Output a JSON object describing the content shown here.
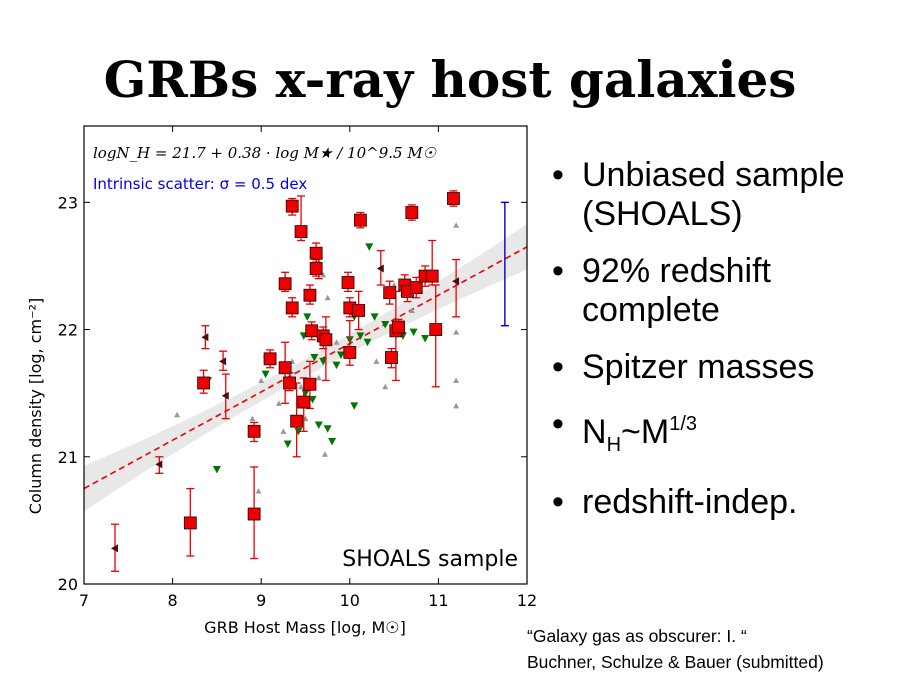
{
  "slide": {
    "title": "GRBs x-ray host galaxies",
    "bullets": [
      {
        "text": "Unbiased sample (SHOALS)"
      },
      {
        "text": "92% redshift complete"
      },
      {
        "text": "Spitzer masses"
      },
      {
        "main": "N",
        "sub": "H",
        "mid": "~M",
        "sup": "1/3"
      },
      {
        "text": "redshift-indep."
      }
    ],
    "citation": [
      "“Galaxy gas as obscurer: I. “",
      "Buchner, Schulze & Bauer (submitted)"
    ]
  },
  "chart_data": {
    "type": "scatter",
    "title": "",
    "xlabel": "GRB Host Mass [log, M☉]",
    "ylabel": "Column density [log, cm⁻²]",
    "xlim": [
      7,
      12
    ],
    "ylim": [
      20,
      23.6
    ],
    "xticks": [
      "7",
      "8",
      "9",
      "10",
      "11",
      "12"
    ],
    "yticks": [
      "20",
      "21",
      "22",
      "23"
    ],
    "grid": false,
    "annotations": {
      "equation": "logN_H = 21.7 + 0.38 · log M★ / 10^9.5 M☉",
      "scatter_label": "Intrinsic scatter: σ = 0.5 dex",
      "sample_label": "SHOALS sample"
    },
    "fit": {
      "intercept": 21.7,
      "slope": 0.38,
      "pivot": 9.5,
      "band_halfwidth_at_ends": 0.18
    },
    "scatter_bar": {
      "x": 11.75,
      "y_low": 22.03,
      "y_high": 23.0
    },
    "colors": {
      "detection": "#ee0000",
      "fit": "#ee0000",
      "band": "#e8e8e8",
      "scatter_bar": "#0000cc",
      "text_blue": "#0000ee",
      "limit_green": "#007700",
      "limit_gray": "#999999",
      "limit_dark": "#441111"
    },
    "series": [
      {
        "kind": "detections",
        "points": [
          {
            "x": 8.2,
            "y": 20.48,
            "lo": 20.22,
            "hi": 20.75
          },
          {
            "x": 8.92,
            "y": 20.55,
            "lo": 20.2,
            "hi": 20.92
          },
          {
            "x": 8.92,
            "y": 21.2,
            "lo": 21.12,
            "hi": 21.27
          },
          {
            "x": 8.35,
            "y": 21.58,
            "lo": 21.5,
            "hi": 21.68
          },
          {
            "x": 9.1,
            "y": 21.77,
            "lo": 21.7,
            "hi": 21.84
          },
          {
            "x": 9.27,
            "y": 21.7,
            "lo": 21.42,
            "hi": 21.9
          },
          {
            "x": 9.27,
            "y": 22.36,
            "lo": 22.3,
            "hi": 22.45
          },
          {
            "x": 9.35,
            "y": 22.97,
            "lo": 22.9,
            "hi": 23.03
          },
          {
            "x": 9.45,
            "y": 22.77,
            "lo": 22.7,
            "hi": 23.05
          },
          {
            "x": 9.35,
            "y": 22.17,
            "lo": 22.1,
            "hi": 22.25
          },
          {
            "x": 9.32,
            "y": 21.58,
            "lo": 21.52,
            "hi": 21.66
          },
          {
            "x": 9.4,
            "y": 21.28,
            "lo": 21.0,
            "hi": 21.58
          },
          {
            "x": 9.48,
            "y": 21.43,
            "lo": 21.2,
            "hi": 21.62
          },
          {
            "x": 9.55,
            "y": 21.57,
            "lo": 21.38,
            "hi": 21.75
          },
          {
            "x": 9.55,
            "y": 22.27,
            "lo": 22.2,
            "hi": 22.35
          },
          {
            "x": 9.57,
            "y": 21.99,
            "lo": 21.92,
            "hi": 22.06
          },
          {
            "x": 9.62,
            "y": 22.6,
            "lo": 22.53,
            "hi": 22.68
          },
          {
            "x": 9.62,
            "y": 22.48,
            "lo": 22.42,
            "hi": 22.55
          },
          {
            "x": 9.7,
            "y": 21.95,
            "lo": 21.85,
            "hi": 22.02
          },
          {
            "x": 9.73,
            "y": 21.92,
            "lo": 21.6,
            "hi": 22.1
          },
          {
            "x": 9.98,
            "y": 22.37,
            "lo": 22.3,
            "hi": 22.45
          },
          {
            "x": 10.0,
            "y": 22.17,
            "lo": 22.1,
            "hi": 22.25
          },
          {
            "x": 10.1,
            "y": 22.15,
            "lo": 22.0,
            "hi": 22.3
          },
          {
            "x": 10.0,
            "y": 21.82,
            "lo": 21.72,
            "hi": 22.07
          },
          {
            "x": 10.12,
            "y": 22.86,
            "lo": 22.8,
            "hi": 22.92
          },
          {
            "x": 10.45,
            "y": 22.29,
            "lo": 22.2,
            "hi": 22.38
          },
          {
            "x": 10.47,
            "y": 21.78,
            "lo": 21.7,
            "hi": 21.85
          },
          {
            "x": 10.52,
            "y": 21.99,
            "lo": 21.6,
            "hi": 22.3
          },
          {
            "x": 10.55,
            "y": 22.02,
            "lo": 21.95,
            "hi": 22.08
          },
          {
            "x": 10.62,
            "y": 22.35,
            "lo": 22.27,
            "hi": 22.43
          },
          {
            "x": 10.65,
            "y": 22.3,
            "lo": 22.22,
            "hi": 22.38
          },
          {
            "x": 10.7,
            "y": 22.92,
            "lo": 22.86,
            "hi": 22.98
          },
          {
            "x": 10.75,
            "y": 22.33,
            "lo": 22.25,
            "hi": 22.41
          },
          {
            "x": 10.85,
            "y": 22.42,
            "lo": 22.34,
            "hi": 22.5
          },
          {
            "x": 10.93,
            "y": 22.42,
            "lo": 22.35,
            "hi": 22.7
          },
          {
            "x": 10.97,
            "y": 22.0,
            "lo": 21.55,
            "hi": 22.35
          },
          {
            "x": 11.17,
            "y": 23.03,
            "lo": 22.97,
            "hi": 23.09
          }
        ]
      },
      {
        "kind": "upper-limits-green",
        "points": [
          {
            "x": 8.5,
            "y": 20.9
          },
          {
            "x": 8.4,
            "y": 21.6
          },
          {
            "x": 9.05,
            "y": 21.65
          },
          {
            "x": 9.3,
            "y": 21.1
          },
          {
            "x": 9.42,
            "y": 21.2
          },
          {
            "x": 9.5,
            "y": 21.5
          },
          {
            "x": 9.58,
            "y": 21.45
          },
          {
            "x": 9.65,
            "y": 21.25
          },
          {
            "x": 9.75,
            "y": 21.22
          },
          {
            "x": 9.8,
            "y": 21.12
          },
          {
            "x": 9.48,
            "y": 21.95
          },
          {
            "x": 9.52,
            "y": 22.1
          },
          {
            "x": 9.6,
            "y": 21.78
          },
          {
            "x": 9.7,
            "y": 21.75
          },
          {
            "x": 9.85,
            "y": 21.72
          },
          {
            "x": 9.9,
            "y": 21.8
          },
          {
            "x": 10.0,
            "y": 21.92
          },
          {
            "x": 10.05,
            "y": 22.1
          },
          {
            "x": 10.12,
            "y": 21.95
          },
          {
            "x": 10.2,
            "y": 21.9
          },
          {
            "x": 10.28,
            "y": 22.1
          },
          {
            "x": 10.05,
            "y": 21.4
          },
          {
            "x": 10.22,
            "y": 22.65
          },
          {
            "x": 10.4,
            "y": 22.04
          },
          {
            "x": 10.6,
            "y": 21.95
          },
          {
            "x": 10.72,
            "y": 21.98
          },
          {
            "x": 10.85,
            "y": 21.93
          }
        ]
      },
      {
        "kind": "limits-gray",
        "points": [
          {
            "x": 8.05,
            "y": 21.33
          },
          {
            "x": 8.9,
            "y": 21.3
          },
          {
            "x": 9.0,
            "y": 21.6
          },
          {
            "x": 9.05,
            "y": 21.8
          },
          {
            "x": 9.2,
            "y": 21.42
          },
          {
            "x": 9.25,
            "y": 21.2
          },
          {
            "x": 9.35,
            "y": 21.75
          },
          {
            "x": 9.45,
            "y": 21.55
          },
          {
            "x": 9.65,
            "y": 21.62
          },
          {
            "x": 9.72,
            "y": 21.02
          },
          {
            "x": 9.75,
            "y": 22.25
          },
          {
            "x": 9.85,
            "y": 21.9
          },
          {
            "x": 9.7,
            "y": 22.43
          },
          {
            "x": 10.3,
            "y": 21.75
          },
          {
            "x": 10.5,
            "y": 22.35
          },
          {
            "x": 10.7,
            "y": 22.15
          },
          {
            "x": 11.2,
            "y": 22.82
          },
          {
            "x": 11.2,
            "y": 21.98
          },
          {
            "x": 11.2,
            "y": 21.6
          },
          {
            "x": 11.2,
            "y": 21.4
          },
          {
            "x": 8.97,
            "y": 20.73
          },
          {
            "x": 9.5,
            "y": 21.3
          },
          {
            "x": 10.4,
            "y": 21.55
          }
        ]
      },
      {
        "kind": "lower-limits-dark",
        "points": [
          {
            "x": 7.35,
            "y": 20.28,
            "lo": 20.1,
            "hi": 20.47
          },
          {
            "x": 7.85,
            "y": 20.94,
            "lo": 20.87,
            "hi": 21.0
          },
          {
            "x": 8.37,
            "y": 21.94,
            "lo": 21.85,
            "hi": 22.03
          },
          {
            "x": 8.57,
            "y": 21.75,
            "lo": 21.68,
            "hi": 21.83
          },
          {
            "x": 8.6,
            "y": 21.48,
            "lo": 21.3,
            "hi": 21.65
          },
          {
            "x": 9.65,
            "y": 22.48,
            "lo": 22.4,
            "hi": 22.56
          },
          {
            "x": 10.35,
            "y": 22.48,
            "lo": 22.35,
            "hi": 22.62
          },
          {
            "x": 11.2,
            "y": 22.38,
            "lo": 22.1,
            "hi": 22.55
          }
        ]
      }
    ]
  }
}
